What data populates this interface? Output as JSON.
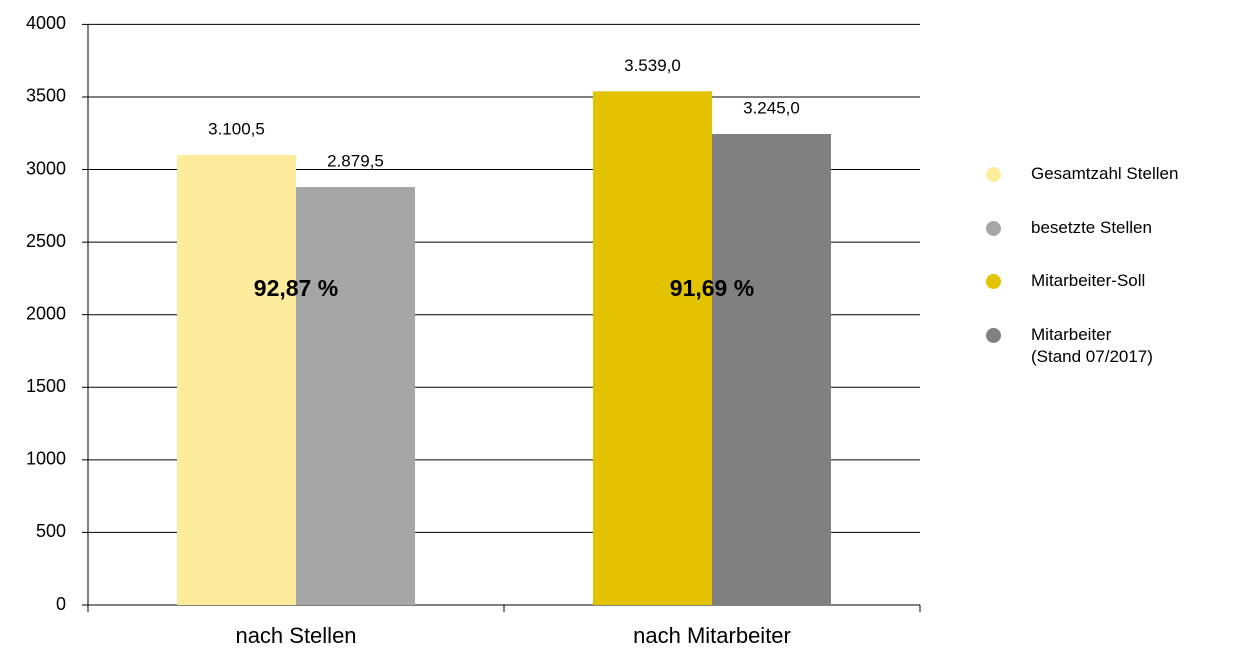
{
  "chart_data": {
    "type": "bar",
    "categories": [
      "nach Stellen",
      "nach Mitarbeiter"
    ],
    "series": [
      {
        "name": "Gesamtzahl Stellen",
        "color": "#fdec9c",
        "values": [
          3100.5,
          null
        ],
        "value_labels": [
          "3.100,5",
          null
        ]
      },
      {
        "name": "besetzte Stellen",
        "color": "#a6a6a6",
        "values": [
          2879.5,
          null
        ],
        "value_labels": [
          "2.879,5",
          null
        ]
      },
      {
        "name": "Mitarbeiter-Soll",
        "color": "#e3c300",
        "values": [
          null,
          3539.0
        ],
        "value_labels": [
          null,
          "3.539,0"
        ]
      },
      {
        "name": "Mitarbeiter\n(Stand 07/2017)",
        "color": "#808080",
        "values": [
          null,
          3245.0
        ],
        "value_labels": [
          null,
          "3.245,0"
        ]
      }
    ],
    "annotations": [
      "92,87 %",
      "91,69 %"
    ],
    "ylim": [
      0,
      4000
    ],
    "yticks": [
      0,
      500,
      1000,
      1500,
      2000,
      2500,
      3000,
      3500,
      4000
    ],
    "grid": true,
    "legend": "right"
  }
}
